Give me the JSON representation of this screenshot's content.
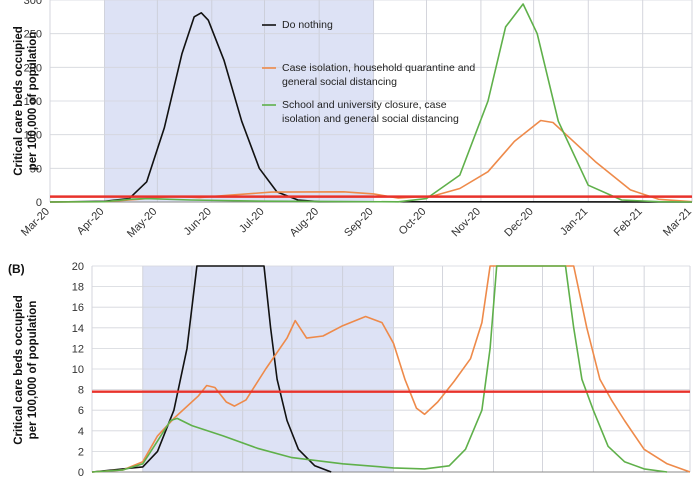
{
  "chart_data": [
    {
      "type": "line",
      "panel_label": "",
      "ylabel": "Critical care beds occupied per 100,000 of population",
      "ylabel_lines": [
        "Critical care beds occupied",
        "per 100,000 of population"
      ],
      "ylim": [
        0,
        300
      ],
      "yticks": [
        0,
        50,
        100,
        150,
        200,
        250,
        300
      ],
      "xlim": [
        "2020-03-01",
        "2021-03-01"
      ],
      "xtick_labels": [
        "Mar-20",
        "Apr-20",
        "May-20",
        "Jun-20",
        "Jul-20",
        "Aug-20",
        "Sep-20",
        "Oct-20",
        "Nov-20",
        "Dec-20",
        "Jan-21",
        "Feb-21",
        "Mar-21"
      ],
      "shaded_period": [
        "2020-04-01",
        "2020-09-01"
      ],
      "shade_color": "#dde2f5",
      "threshold": {
        "value": 8,
        "color": "#e8322b"
      },
      "legend": {
        "placement": "top-center",
        "entries": [
          {
            "label": "Do nothing",
            "color": "#111111"
          },
          {
            "label_lines": [
              "Case isolation, household quarantine and",
              "general social distancing"
            ],
            "color": "#ee8a4a"
          },
          {
            "label_lines": [
              "School and university closure, case",
              "isolation and general social distancing"
            ],
            "color": "#5fb04a"
          }
        ]
      },
      "series": [
        {
          "key": "do_nothing",
          "color": "#111111",
          "points": [
            [
              "2020-03-01",
              0
            ],
            [
              "2020-04-01",
              1
            ],
            [
              "2020-04-15",
              5
            ],
            [
              "2020-04-25",
              30
            ],
            [
              "2020-05-05",
              110
            ],
            [
              "2020-05-15",
              220
            ],
            [
              "2020-05-22",
              275
            ],
            [
              "2020-05-26",
              281
            ],
            [
              "2020-05-30",
              270
            ],
            [
              "2020-06-08",
              210
            ],
            [
              "2020-06-18",
              120
            ],
            [
              "2020-06-28",
              50
            ],
            [
              "2020-07-08",
              15
            ],
            [
              "2020-07-20",
              3
            ],
            [
              "2020-08-01",
              0.5
            ],
            [
              "2021-03-01",
              0
            ]
          ]
        },
        {
          "key": "case_isolation",
          "color": "#ee8a4a",
          "points": [
            [
              "2020-03-01",
              0
            ],
            [
              "2020-04-01",
              0.5
            ],
            [
              "2020-04-20",
              4
            ],
            [
              "2020-05-10",
              8.4
            ],
            [
              "2020-05-25",
              6.5
            ],
            [
              "2020-06-10",
              10
            ],
            [
              "2020-07-05",
              14.7
            ],
            [
              "2020-08-15",
              15.2
            ],
            [
              "2020-09-01",
              12
            ],
            [
              "2020-09-15",
              5.8
            ],
            [
              "2020-10-05",
              9
            ],
            [
              "2020-10-20",
              20
            ],
            [
              "2020-11-05",
              45
            ],
            [
              "2020-11-20",
              90
            ],
            [
              "2020-12-05",
              121
            ],
            [
              "2020-12-12",
              118
            ],
            [
              "2021-01-05",
              60
            ],
            [
              "2021-01-25",
              18
            ],
            [
              "2021-02-10",
              4
            ],
            [
              "2021-03-01",
              0.5
            ]
          ]
        },
        {
          "key": "school_closure",
          "color": "#5fb04a",
          "points": [
            [
              "2020-03-01",
              0
            ],
            [
              "2020-04-01",
              0.5
            ],
            [
              "2020-04-15",
              4
            ],
            [
              "2020-04-25",
              5.1
            ],
            [
              "2020-05-20",
              3
            ],
            [
              "2020-07-01",
              1.2
            ],
            [
              "2020-08-15",
              0.6
            ],
            [
              "2020-09-15",
              0.3
            ],
            [
              "2020-10-01",
              5
            ],
            [
              "2020-10-20",
              40
            ],
            [
              "2020-11-05",
              150
            ],
            [
              "2020-11-15",
              260
            ],
            [
              "2020-11-25",
              294
            ],
            [
              "2020-12-03",
              250
            ],
            [
              "2020-12-15",
              120
            ],
            [
              "2021-01-01",
              25
            ],
            [
              "2021-01-20",
              3
            ],
            [
              "2021-02-10",
              0.5
            ],
            [
              "2021-03-01",
              0
            ]
          ]
        }
      ]
    },
    {
      "type": "line",
      "panel_label": "(B)",
      "ylabel": "Critical care beds occupied per 100,000 of population",
      "ylabel_lines": [
        "Critical care beds occupied",
        "per 100,000 of population"
      ],
      "ylim": [
        0,
        20
      ],
      "yticks": [
        0,
        2,
        4,
        6,
        8,
        10,
        12,
        14,
        16,
        18,
        20
      ],
      "xlim": [
        "2020-03-01",
        "2021-03-01"
      ],
      "shaded_period": [
        "2020-04-01",
        "2020-09-01"
      ],
      "shade_color": "#dde2f5",
      "threshold": {
        "value": 7.8,
        "color": "#e8322b"
      },
      "series": [
        {
          "key": "do_nothing",
          "color": "#111111",
          "points": [
            [
              "2020-03-01",
              0
            ],
            [
              "2020-04-01",
              0.5
            ],
            [
              "2020-04-10",
              2
            ],
            [
              "2020-04-20",
              6
            ],
            [
              "2020-04-28",
              12
            ],
            [
              "2020-05-04",
              20
            ],
            [
              "2020-06-14",
              20
            ],
            [
              "2020-06-18",
              14
            ],
            [
              "2020-06-22",
              9
            ],
            [
              "2020-06-28",
              5
            ],
            [
              "2020-07-05",
              2.2
            ],
            [
              "2020-07-15",
              0.6
            ],
            [
              "2020-07-25",
              0
            ]
          ]
        },
        {
          "key": "case_isolation",
          "color": "#ee8a4a",
          "points": [
            [
              "2020-03-01",
              0
            ],
            [
              "2020-03-20",
              0.2
            ],
            [
              "2020-04-01",
              1
            ],
            [
              "2020-04-10",
              3.5
            ],
            [
              "2020-04-20",
              5.2
            ],
            [
              "2020-05-05",
              7.4
            ],
            [
              "2020-05-10",
              8.4
            ],
            [
              "2020-05-15",
              8.2
            ],
            [
              "2020-05-22",
              6.8
            ],
            [
              "2020-05-27",
              6.4
            ],
            [
              "2020-06-03",
              7
            ],
            [
              "2020-06-15",
              10
            ],
            [
              "2020-06-28",
              13
            ],
            [
              "2020-07-03",
              14.7
            ],
            [
              "2020-07-10",
              13
            ],
            [
              "2020-07-20",
              13.2
            ],
            [
              "2020-08-01",
              14.2
            ],
            [
              "2020-08-15",
              15.1
            ],
            [
              "2020-08-25",
              14.5
            ],
            [
              "2020-09-01",
              12.5
            ],
            [
              "2020-09-08",
              9
            ],
            [
              "2020-09-15",
              6.2
            ],
            [
              "2020-09-20",
              5.6
            ],
            [
              "2020-09-28",
              6.8
            ],
            [
              "2020-10-08",
              8.8
            ],
            [
              "2020-10-18",
              11
            ],
            [
              "2020-10-25",
              14.5
            ],
            [
              "2020-10-30",
              20
            ],
            [
              "2020-12-20",
              20
            ],
            [
              "2020-12-28",
              14
            ],
            [
              "2021-01-05",
              9
            ],
            [
              "2021-01-12",
              7
            ],
            [
              "2021-01-20",
              5
            ],
            [
              "2021-02-01",
              2.2
            ],
            [
              "2021-02-15",
              0.8
            ],
            [
              "2021-03-01",
              0
            ]
          ]
        },
        {
          "key": "school_closure",
          "color": "#5fb04a",
          "points": [
            [
              "2020-03-01",
              0
            ],
            [
              "2020-03-20",
              0.2
            ],
            [
              "2020-04-01",
              0.8
            ],
            [
              "2020-04-10",
              3
            ],
            [
              "2020-04-18",
              5
            ],
            [
              "2020-04-22",
              5.2
            ],
            [
              "2020-05-01",
              4.5
            ],
            [
              "2020-05-20",
              3.5
            ],
            [
              "2020-06-10",
              2.3
            ],
            [
              "2020-07-01",
              1.4
            ],
            [
              "2020-08-01",
              0.8
            ],
            [
              "2020-09-01",
              0.4
            ],
            [
              "2020-09-20",
              0.3
            ],
            [
              "2020-10-05",
              0.6
            ],
            [
              "2020-10-15",
              2.2
            ],
            [
              "2020-10-25",
              6
            ],
            [
              "2020-10-30",
              12
            ],
            [
              "2020-11-03",
              20
            ],
            [
              "2020-12-15",
              20
            ],
            [
              "2020-12-20",
              14
            ],
            [
              "2020-12-25",
              9
            ],
            [
              "2021-01-01",
              6
            ],
            [
              "2021-01-10",
              2.5
            ],
            [
              "2021-01-20",
              1
            ],
            [
              "2021-02-01",
              0.3
            ],
            [
              "2021-02-15",
              0
            ]
          ]
        }
      ]
    }
  ]
}
